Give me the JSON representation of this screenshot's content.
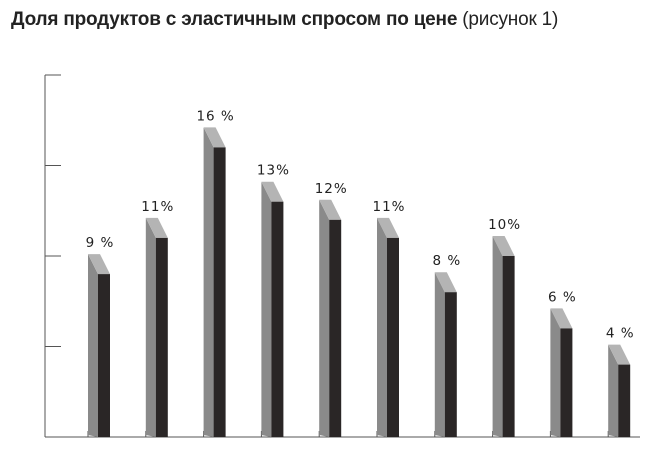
{
  "title": {
    "bold": "Доля продуктов с эластичным спросом по цене",
    "light": " (рисунок 1)"
  },
  "colors": {
    "bar_front": "#2a2626",
    "bar_side": "#8a8a8a",
    "bar_top": "#b4b4b4",
    "axis": "#555555"
  },
  "chart_data": {
    "type": "bar",
    "title": "Доля продуктов с эластичным спросом по цене (рисунок 1)",
    "categories": [
      "",
      "",
      "",
      "",
      "",
      "",
      "",
      "",
      "",
      ""
    ],
    "values": [
      9,
      11,
      16,
      13,
      12,
      11,
      8,
      10,
      6,
      4
    ],
    "value_labels": [
      "9 %",
      "11%",
      "16 %",
      "13%",
      "12%",
      "11%",
      "8 %",
      "10%",
      "6 %",
      "4 %"
    ],
    "ylim": [
      0,
      20
    ],
    "y_major_ticks": [
      5,
      10,
      15,
      20
    ],
    "grid": false,
    "style": "3d"
  }
}
